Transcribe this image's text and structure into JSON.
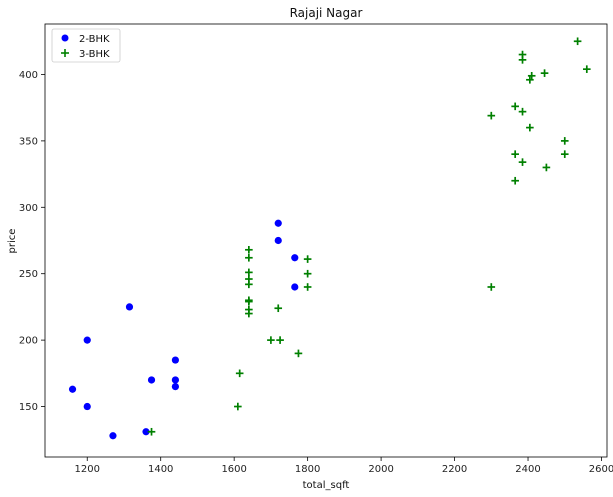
{
  "chart_data": {
    "type": "scatter",
    "title": "Rajaji Nagar",
    "xlabel": "total_sqft",
    "ylabel": "price",
    "xlim": [
      1085,
      2615
    ],
    "ylim": [
      112,
      438
    ],
    "xticks": [
      1200,
      1400,
      1600,
      1800,
      2000,
      2200,
      2400,
      2600
    ],
    "yticks": [
      150,
      200,
      250,
      300,
      350,
      400
    ],
    "grid": false,
    "legend_position": "top-left",
    "series": [
      {
        "name": "2-BHK",
        "marker": "circle",
        "color": "#0000ff",
        "points": [
          [
            1160,
            163
          ],
          [
            1200,
            200
          ],
          [
            1200,
            150
          ],
          [
            1270,
            128
          ],
          [
            1315,
            225
          ],
          [
            1360,
            131
          ],
          [
            1375,
            170
          ],
          [
            1440,
            185
          ],
          [
            1440,
            170
          ],
          [
            1440,
            165
          ],
          [
            1720,
            288
          ],
          [
            1720,
            275
          ],
          [
            1765,
            262
          ],
          [
            1765,
            240
          ]
        ]
      },
      {
        "name": "3-BHK",
        "marker": "plus",
        "color": "#008000",
        "points": [
          [
            1375,
            131
          ],
          [
            1610,
            150
          ],
          [
            1615,
            175
          ],
          [
            1640,
            268
          ],
          [
            1640,
            262
          ],
          [
            1640,
            251
          ],
          [
            1640,
            246
          ],
          [
            1640,
            242
          ],
          [
            1640,
            230
          ],
          [
            1640,
            229
          ],
          [
            1640,
            223
          ],
          [
            1640,
            220
          ],
          [
            1700,
            200
          ],
          [
            1720,
            224
          ],
          [
            1725,
            200
          ],
          [
            1775,
            190
          ],
          [
            1800,
            261
          ],
          [
            1800,
            250
          ],
          [
            1800,
            240
          ],
          [
            2300,
            369
          ],
          [
            2300,
            240
          ],
          [
            2365,
            376
          ],
          [
            2365,
            340
          ],
          [
            2365,
            320
          ],
          [
            2385,
            415
          ],
          [
            2385,
            411
          ],
          [
            2385,
            372
          ],
          [
            2385,
            334
          ],
          [
            2405,
            396
          ],
          [
            2405,
            360
          ],
          [
            2410,
            399
          ],
          [
            2445,
            401
          ],
          [
            2450,
            330
          ],
          [
            2500,
            350
          ],
          [
            2500,
            340
          ],
          [
            2535,
            425
          ],
          [
            2560,
            404
          ]
        ]
      }
    ]
  }
}
